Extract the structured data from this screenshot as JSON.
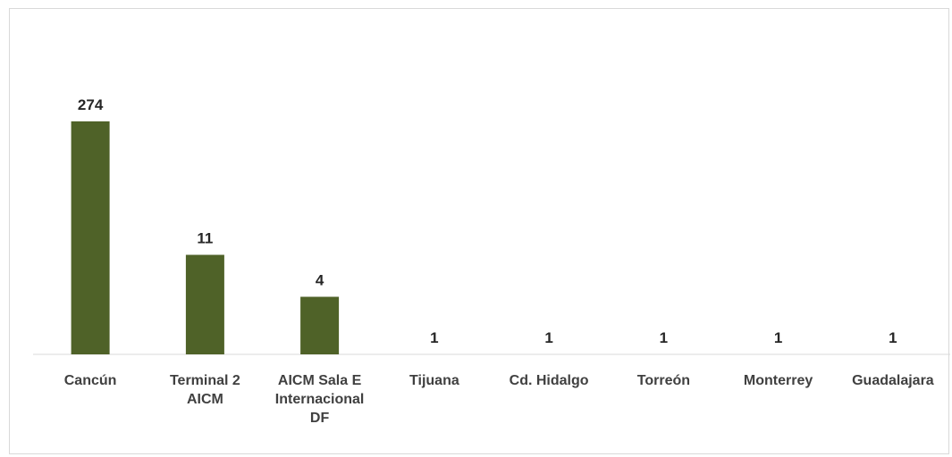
{
  "chart_data": {
    "type": "bar",
    "title": "",
    "xlabel": "",
    "ylabel": "",
    "categories": [
      "Cancún",
      "Terminal 2\nAICM",
      "AICM  Sala E\nInternacional\nDF",
      "Tijuana",
      "Cd. Hidalgo",
      "Torreón",
      "Monterrey",
      "Guadalajara"
    ],
    "values": [
      274,
      11,
      4,
      1,
      1,
      1,
      1,
      1
    ],
    "scale": "log",
    "ylim": [
      1,
      300
    ],
    "grid": false,
    "legend": "none",
    "show_data_labels": true,
    "bar_color": "#4f6228"
  }
}
